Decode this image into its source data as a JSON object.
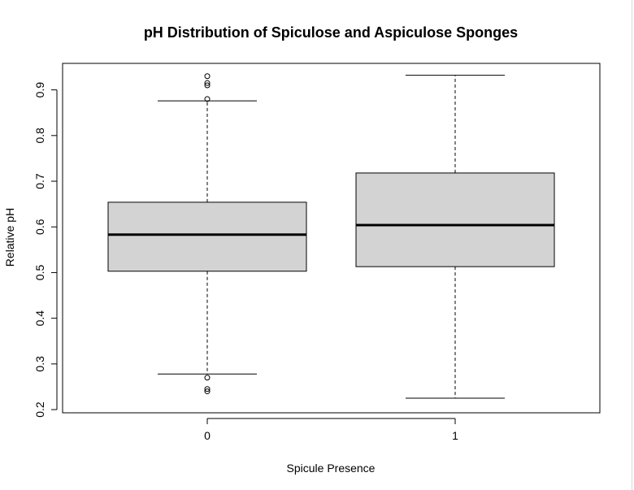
{
  "chart_data": {
    "type": "box",
    "title": "pH Distribution of Spiculose and Aspiculose Sponges",
    "xlabel": "Spicule Presence",
    "ylabel": "Relative pH",
    "categories": [
      "0",
      "1"
    ],
    "yticks": [
      "0.2",
      "0.3",
      "0.4",
      "0.5",
      "0.6",
      "0.7",
      "0.8",
      "0.9"
    ],
    "ylim": [
      0.193,
      0.958
    ],
    "grid": false,
    "boxes": [
      {
        "category": "0",
        "whisker_low": 0.278,
        "q1": 0.503,
        "median": 0.583,
        "q3": 0.654,
        "whisker_high": 0.876,
        "outliers": [
          0.93,
          0.915,
          0.91,
          0.88,
          0.27,
          0.245,
          0.24
        ]
      },
      {
        "category": "1",
        "whisker_low": 0.225,
        "q1": 0.513,
        "median": 0.604,
        "q3": 0.718,
        "whisker_high": 0.932,
        "outliers": []
      }
    ],
    "colors": {
      "box_fill": "#d3d3d3",
      "line": "#000000"
    }
  }
}
